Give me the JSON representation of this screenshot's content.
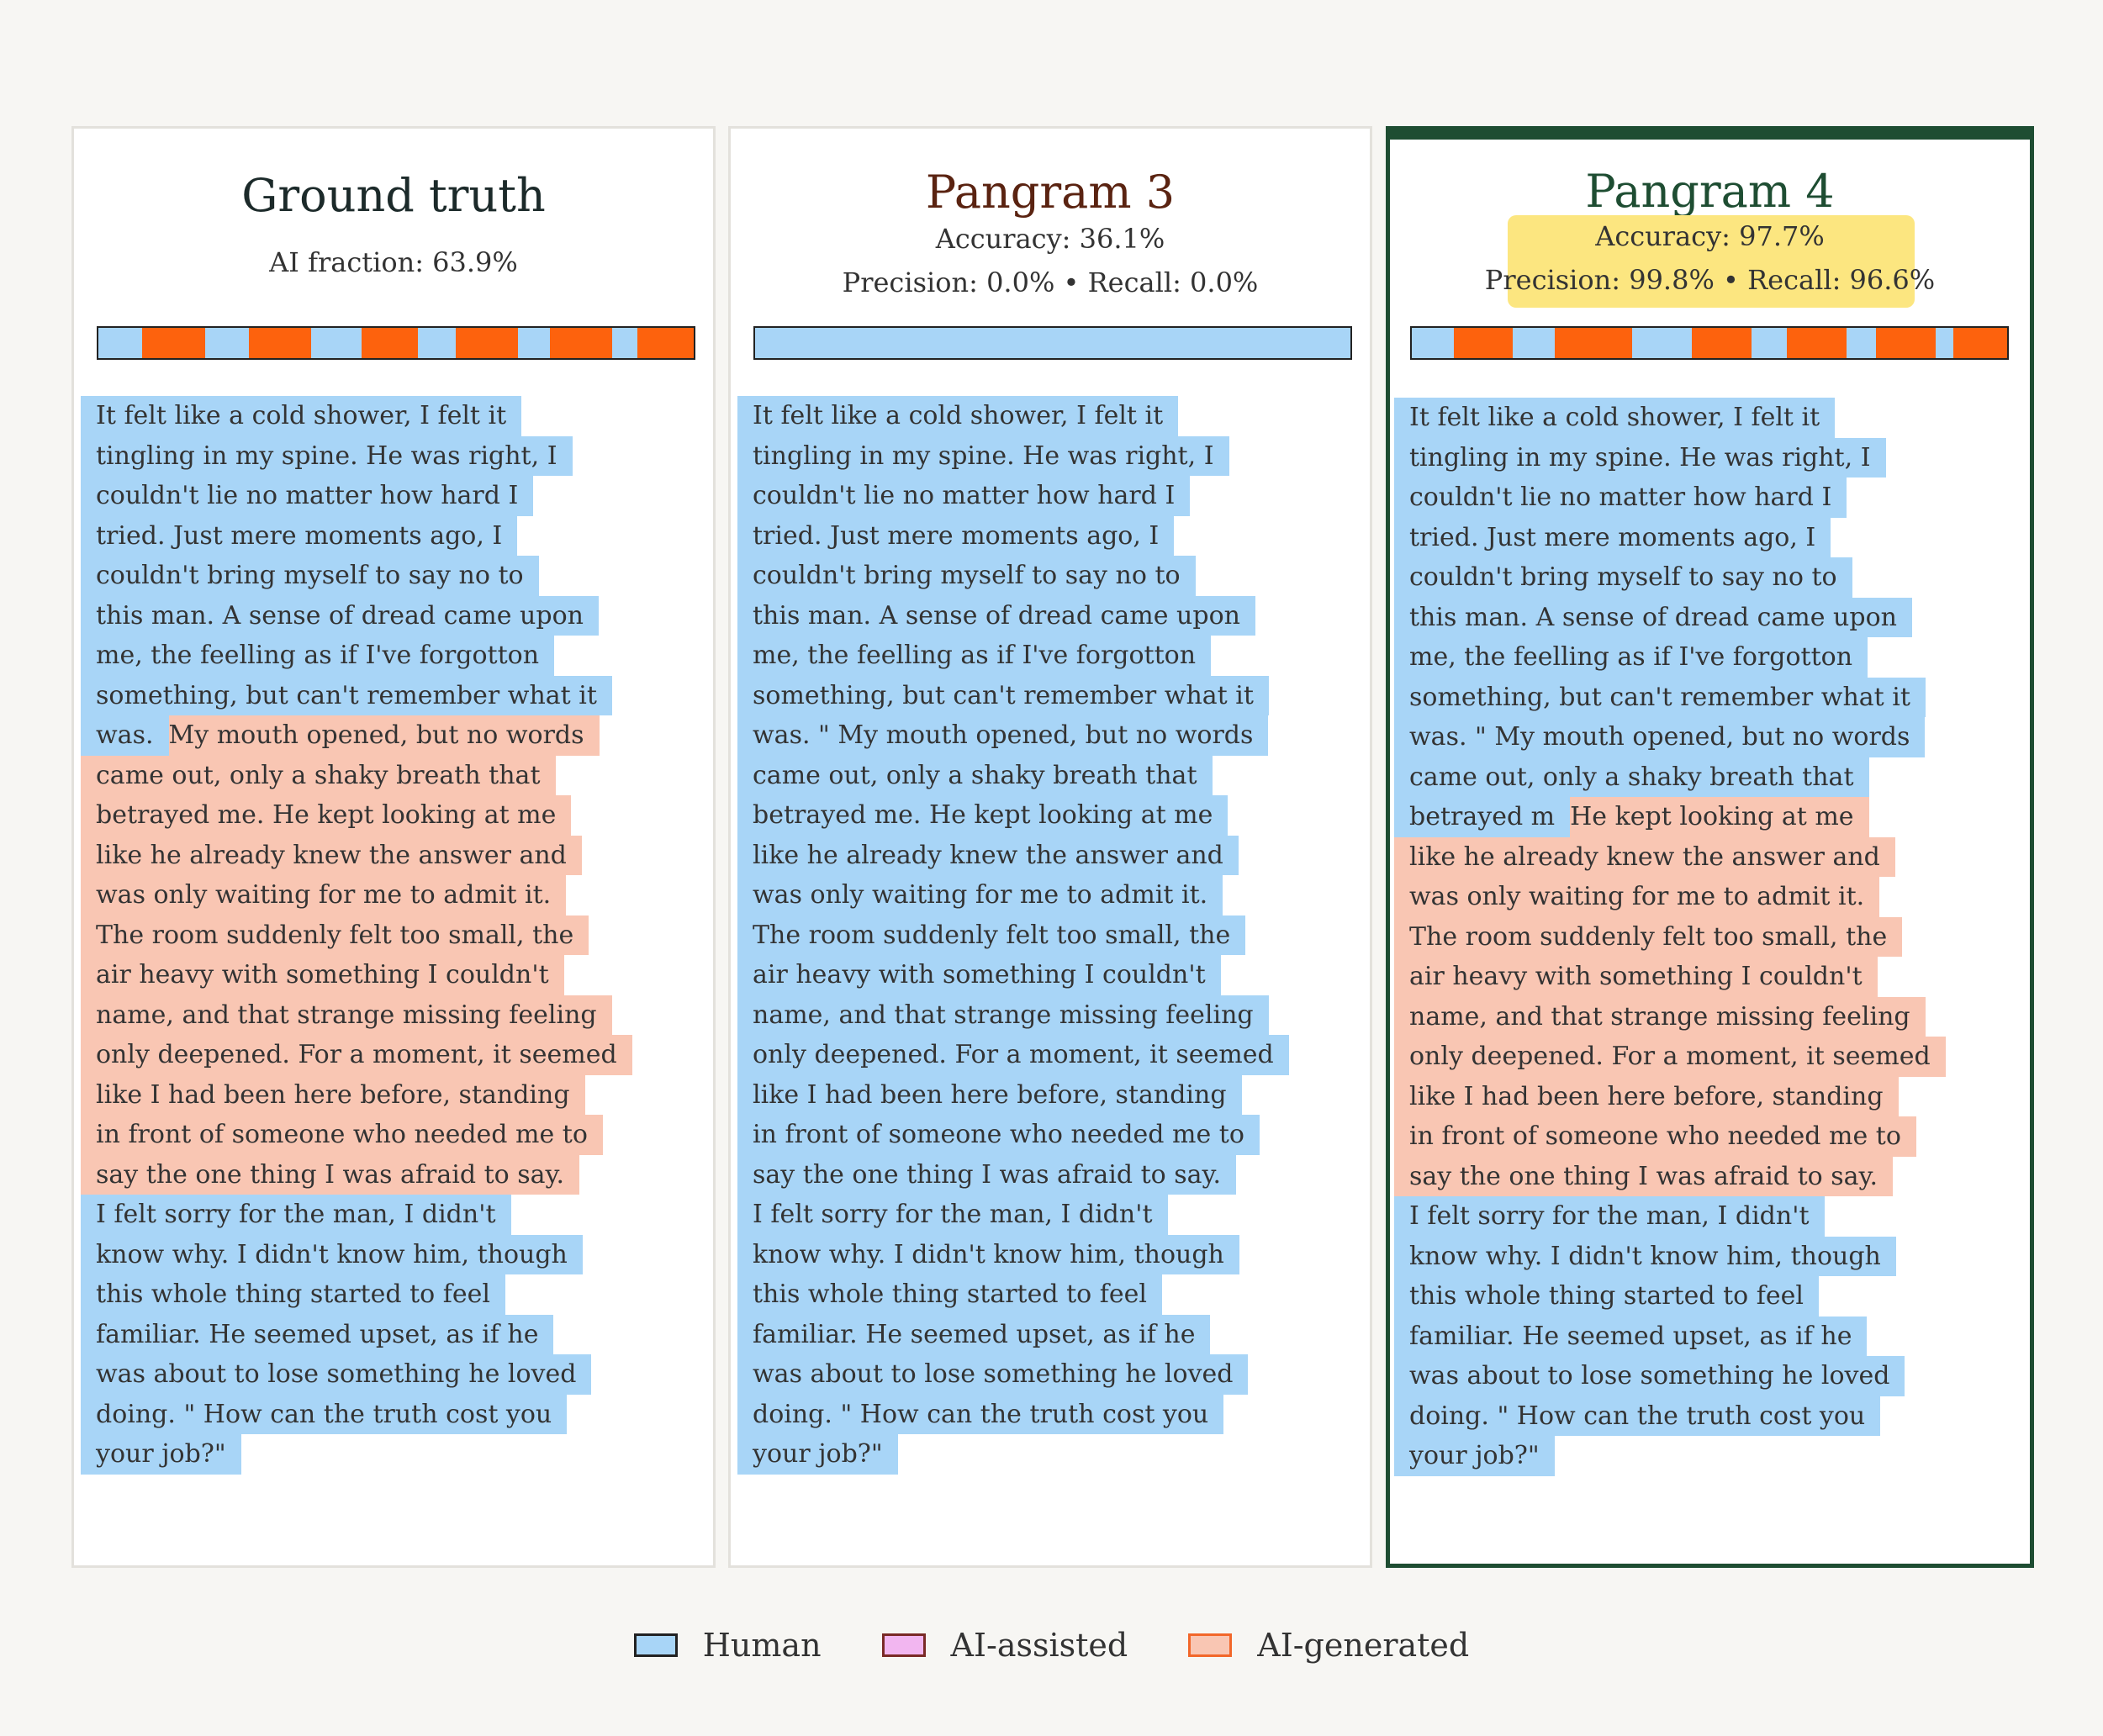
{
  "colors": {
    "human": "#a8d5f7",
    "human_border": "#222222",
    "ai_assisted": "#f2b6f0",
    "ai_assisted_border": "#7a2a26",
    "ai_generated": "#f9c6b3",
    "ai_generated_border": "#f2672a",
    "bar_ai": "#fd620d",
    "bar_human": "#a8d5f7",
    "gt_title": "#1c2a2a",
    "p3_title": "#5a2311",
    "p4_title": "#1e4d32",
    "highlight": "#fce680"
  },
  "legend": [
    {
      "label": "Human",
      "key": "human"
    },
    {
      "label": "AI-assisted",
      "key": "ai_assisted"
    },
    {
      "label": "AI-generated",
      "key": "ai_generated"
    }
  ],
  "panels": [
    {
      "id": "ground-truth",
      "title": "Ground truth",
      "metrics": [
        "AI fraction: 63.9%"
      ],
      "bar": [
        "h",
        7,
        "a",
        10,
        "h",
        7,
        "a",
        10,
        "h",
        8,
        "a",
        9,
        "h",
        6,
        "a",
        10,
        "h",
        5,
        "a",
        10,
        "h",
        4,
        "a",
        9
      ],
      "lines": [
        [
          [
            "h",
            "It felt like a cold shower, I felt it"
          ]
        ],
        [
          [
            "h",
            "tingling in my spine. He was right, I"
          ]
        ],
        [
          [
            "h",
            "couldn't lie no matter how hard I"
          ]
        ],
        [
          [
            "h",
            "tried. Just mere moments ago, I"
          ]
        ],
        [
          [
            "h",
            "couldn't bring myself to say no to"
          ]
        ],
        [
          [
            "h",
            "this man. A sense of dread came upon"
          ]
        ],
        [
          [
            "h",
            "me, the feelling as if I've forgotton"
          ]
        ],
        [
          [
            "h",
            "something, but can't remember what it"
          ]
        ],
        [
          [
            "h",
            "was."
          ],
          [
            "a",
            "My mouth opened, but no words"
          ]
        ],
        [
          [
            "a",
            "came out, only a shaky breath that"
          ]
        ],
        [
          [
            "a",
            "betrayed me. He kept looking at me"
          ]
        ],
        [
          [
            "a",
            "like he already knew the answer and"
          ]
        ],
        [
          [
            "a",
            "was only waiting for me to admit it."
          ]
        ],
        [
          [
            "a",
            "The room suddenly felt too small, the"
          ]
        ],
        [
          [
            "a",
            "air heavy with something I couldn't"
          ]
        ],
        [
          [
            "a",
            "name, and that strange missing feeling"
          ]
        ],
        [
          [
            "a",
            "only deepened. For a moment, it seemed"
          ]
        ],
        [
          [
            "a",
            "like I had been here before, standing"
          ]
        ],
        [
          [
            "a",
            "in front of someone who needed me to"
          ]
        ],
        [
          [
            "a",
            "say the one thing I was afraid to say."
          ]
        ],
        [
          [
            "h",
            "I felt sorry for the man, I didn't"
          ]
        ],
        [
          [
            "h",
            "know why. I didn't know him, though"
          ]
        ],
        [
          [
            "h",
            "this whole thing started to feel"
          ]
        ],
        [
          [
            "h",
            "familiar. He seemed upset, as if he"
          ]
        ],
        [
          [
            "h",
            "was about to lose something he loved"
          ]
        ],
        [
          [
            "h",
            "doing. \" How can the truth cost you"
          ]
        ],
        [
          [
            "h",
            "your job?\""
          ]
        ]
      ]
    },
    {
      "id": "pangram-3",
      "title": "Pangram 3",
      "metrics": [
        "Accuracy: 36.1%",
        "Precision: 0.0%  •  Recall: 0.0%"
      ],
      "bar": [
        "h",
        100
      ],
      "lines": [
        [
          [
            "h",
            "It felt like a cold shower, I felt it"
          ]
        ],
        [
          [
            "h",
            "tingling in my spine. He was right, I"
          ]
        ],
        [
          [
            "h",
            "couldn't lie no matter how hard I"
          ]
        ],
        [
          [
            "h",
            "tried. Just mere moments ago, I"
          ]
        ],
        [
          [
            "h",
            "couldn't bring myself to say no to"
          ]
        ],
        [
          [
            "h",
            "this man. A sense of dread came upon"
          ]
        ],
        [
          [
            "h",
            "me, the feelling as if I've forgotton"
          ]
        ],
        [
          [
            "h",
            "something, but can't remember what it"
          ]
        ],
        [
          [
            "h",
            "was. \" My mouth opened, but no words"
          ]
        ],
        [
          [
            "h",
            "came out, only a shaky breath that"
          ]
        ],
        [
          [
            "h",
            "betrayed me. He kept looking at me"
          ]
        ],
        [
          [
            "h",
            "like he already knew the answer and"
          ]
        ],
        [
          [
            "h",
            "was only waiting for me to admit it."
          ]
        ],
        [
          [
            "h",
            "The room suddenly felt too small, the"
          ]
        ],
        [
          [
            "h",
            "air heavy with something I couldn't"
          ]
        ],
        [
          [
            "h",
            "name, and that strange missing feeling"
          ]
        ],
        [
          [
            "h",
            "only deepened. For a moment, it seemed"
          ]
        ],
        [
          [
            "h",
            "like I had been here before, standing"
          ]
        ],
        [
          [
            "h",
            "in front of someone who needed me to"
          ]
        ],
        [
          [
            "h",
            "say the one thing I was afraid to say."
          ]
        ],
        [
          [
            "h",
            "I felt sorry for the man, I didn't"
          ]
        ],
        [
          [
            "h",
            "know why. I didn't know him, though"
          ]
        ],
        [
          [
            "h",
            "this whole thing started to feel"
          ]
        ],
        [
          [
            "h",
            "familiar. He seemed upset, as if he"
          ]
        ],
        [
          [
            "h",
            "was about to lose something he loved"
          ]
        ],
        [
          [
            "h",
            "doing. \" How can the truth cost you"
          ]
        ],
        [
          [
            "h",
            "your job?\""
          ]
        ]
      ]
    },
    {
      "id": "pangram-4",
      "title": "Pangram 4",
      "metrics": [
        "Accuracy: 97.7%",
        "Precision: 99.8%  •  Recall: 96.6%"
      ],
      "bar": [
        "h",
        7,
        "a",
        10,
        "h",
        7,
        "a",
        13,
        "h",
        10,
        "a",
        10,
        "h",
        6,
        "a",
        10,
        "h",
        5,
        "a",
        10,
        "h",
        3,
        "a",
        9
      ],
      "lines": [
        [
          [
            "h",
            "It felt like a cold shower, I felt it"
          ]
        ],
        [
          [
            "h",
            "tingling in my spine. He was right, I"
          ]
        ],
        [
          [
            "h",
            "couldn't lie no matter how hard I"
          ]
        ],
        [
          [
            "h",
            "tried. Just mere moments ago, I"
          ]
        ],
        [
          [
            "h",
            "couldn't bring myself to say no to"
          ]
        ],
        [
          [
            "h",
            "this man. A sense of dread came upon"
          ]
        ],
        [
          [
            "h",
            "me, the feelling as if I've forgotton"
          ]
        ],
        [
          [
            "h",
            "something, but can't remember what it"
          ]
        ],
        [
          [
            "h",
            "was. \" My mouth opened, but no words"
          ]
        ],
        [
          [
            "h",
            "came out, only a shaky breath that"
          ]
        ],
        [
          [
            "h",
            "betrayed m"
          ],
          [
            "a",
            "He kept looking at me"
          ]
        ],
        [
          [
            "a",
            "like he already knew the answer and"
          ]
        ],
        [
          [
            "a",
            "was only waiting for me to admit it."
          ]
        ],
        [
          [
            "a",
            "The room suddenly felt too small, the"
          ]
        ],
        [
          [
            "a",
            "air heavy with something I couldn't"
          ]
        ],
        [
          [
            "a",
            "name, and that strange missing feeling"
          ]
        ],
        [
          [
            "a",
            "only deepened. For a moment, it seemed"
          ]
        ],
        [
          [
            "a",
            "like I had been here before, standing"
          ]
        ],
        [
          [
            "a",
            "in front of someone who needed me to"
          ]
        ],
        [
          [
            "a",
            "say the one thing I was afraid to say."
          ]
        ],
        [
          [
            "h",
            "I felt sorry for the man, I didn't"
          ]
        ],
        [
          [
            "h",
            "know why. I didn't know him, though"
          ]
        ],
        [
          [
            "h",
            "this whole thing started to feel"
          ]
        ],
        [
          [
            "h",
            "familiar. He seemed upset, as if he"
          ]
        ],
        [
          [
            "h",
            "was about to lose something he loved"
          ]
        ],
        [
          [
            "h",
            "doing. \" How can the truth cost you"
          ]
        ],
        [
          [
            "h",
            "your job?\""
          ]
        ]
      ]
    }
  ]
}
